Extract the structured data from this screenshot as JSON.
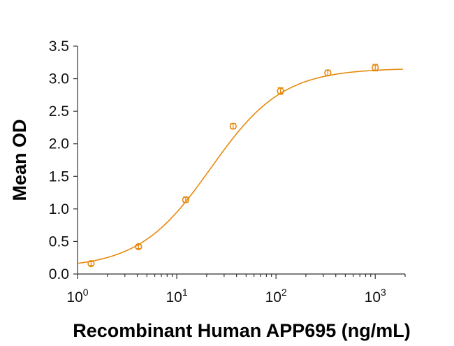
{
  "chart_data": {
    "type": "scatter",
    "title": "",
    "xlabel": "Recombinant Human APP695 (ng/mL)",
    "ylabel": "Mean OD",
    "x_scale": "log",
    "xlim": [
      1,
      2000
    ],
    "ylim": [
      0,
      3.5
    ],
    "x_ticks": [
      {
        "value": 1,
        "base": "10",
        "exp": "0"
      },
      {
        "value": 10,
        "base": "10",
        "exp": "1"
      },
      {
        "value": 100,
        "base": "10",
        "exp": "2"
      },
      {
        "value": 1000,
        "base": "10",
        "exp": "3"
      }
    ],
    "y_ticks": [
      "0.0",
      "0.5",
      "1.0",
      "1.5",
      "2.0",
      "2.5",
      "3.0",
      "3.5"
    ],
    "grid": false,
    "color": "#E8890C",
    "series": [
      {
        "name": "APP695",
        "x": [
          1.37,
          4.12,
          12.3,
          37.0,
          111,
          333,
          1000
        ],
        "y": [
          0.16,
          0.42,
          1.14,
          2.27,
          2.81,
          3.09,
          3.17
        ],
        "err": [
          0.03,
          0.03,
          0.04,
          0.04,
          0.05,
          0.04,
          0.05
        ]
      }
    ],
    "fit": {
      "type": "4PL",
      "bottom": 0.09,
      "top": 3.16,
      "ec50": 22,
      "hill": 1.2,
      "x_range": [
        1.0,
        1900
      ]
    }
  }
}
